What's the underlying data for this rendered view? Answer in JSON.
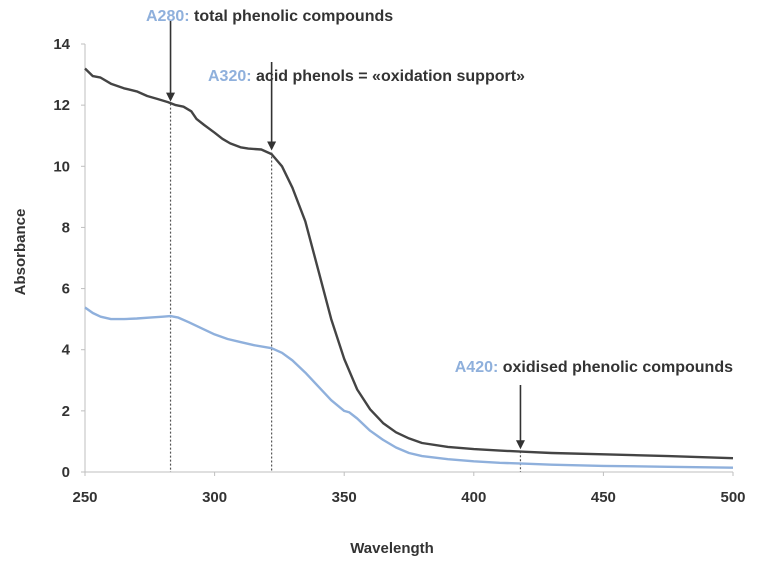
{
  "chart_data": {
    "type": "line",
    "xlabel": "Wavelength",
    "ylabel": "Absorbance",
    "xlim": [
      250,
      500
    ],
    "ylim": [
      0,
      14
    ],
    "x_ticks": [
      250,
      300,
      350,
      400,
      450,
      500
    ],
    "y_ticks": [
      0,
      2,
      4,
      6,
      8,
      10,
      12,
      14
    ],
    "grid": false,
    "series": [
      {
        "color": "#444444",
        "x": [
          250,
          253,
          256,
          260,
          265,
          270,
          274,
          278,
          282,
          285,
          288,
          291,
          293,
          296,
          300,
          303,
          306,
          310,
          313,
          318,
          322,
          326,
          330,
          335,
          340,
          345,
          350,
          355,
          360,
          365,
          370,
          375,
          380,
          390,
          400,
          410,
          420,
          430,
          450,
          475,
          500
        ],
        "y": [
          13.2,
          12.95,
          12.9,
          12.7,
          12.55,
          12.45,
          12.3,
          12.2,
          12.1,
          12.0,
          11.95,
          11.8,
          11.55,
          11.35,
          11.1,
          10.9,
          10.75,
          10.62,
          10.58,
          10.55,
          10.4,
          10.0,
          9.3,
          8.2,
          6.6,
          5.0,
          3.7,
          2.7,
          2.05,
          1.6,
          1.3,
          1.1,
          0.95,
          0.82,
          0.75,
          0.7,
          0.66,
          0.62,
          0.58,
          0.52,
          0.45
        ]
      },
      {
        "color": "#8fb0dc",
        "x": [
          250,
          253,
          256,
          260,
          265,
          270,
          275,
          280,
          283,
          286,
          290,
          295,
          300,
          305,
          310,
          315,
          322,
          326,
          330,
          335,
          340,
          345,
          350,
          352,
          355,
          360,
          365,
          370,
          375,
          380,
          390,
          400,
          410,
          420,
          430,
          450,
          475,
          500
        ],
        "y": [
          5.38,
          5.2,
          5.08,
          5.0,
          5.0,
          5.02,
          5.05,
          5.08,
          5.1,
          5.05,
          4.9,
          4.7,
          4.5,
          4.35,
          4.25,
          4.15,
          4.05,
          3.9,
          3.65,
          3.25,
          2.8,
          2.35,
          2.0,
          1.95,
          1.75,
          1.35,
          1.05,
          0.8,
          0.62,
          0.52,
          0.42,
          0.35,
          0.3,
          0.27,
          0.24,
          0.2,
          0.17,
          0.14
        ]
      }
    ],
    "annotations": [
      {
        "key": "A280:",
        "desc": " total phenolic compounds",
        "x": 283,
        "y_curve": 12.05,
        "ref_line": true
      },
      {
        "key": "A320:",
        "desc": " acid phenols = «oxidation support»",
        "x": 322,
        "y_curve": 10.45,
        "ref_line": true
      },
      {
        "key": "A420:",
        "desc": " oxidised phenolic compounds",
        "x": 418,
        "y_curve": 0.68,
        "ref_line": true
      }
    ],
    "annotation_key_color": "#8fb0dc"
  }
}
